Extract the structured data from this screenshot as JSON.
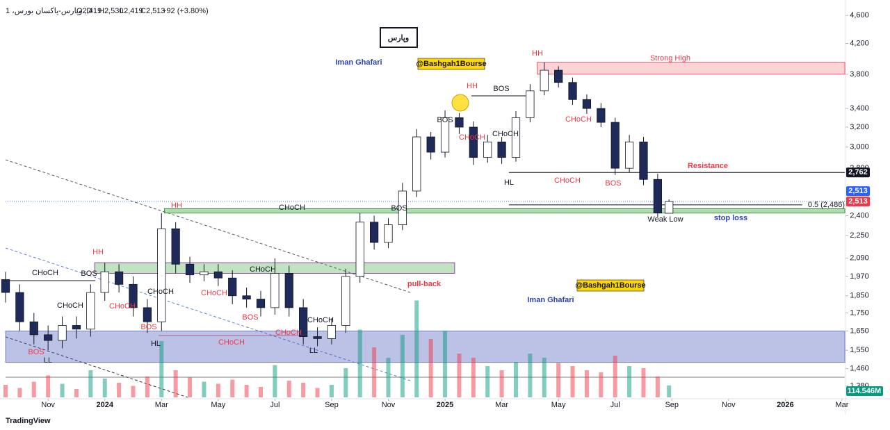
{
  "chart_data": {
    "type": "candlestick",
    "title": "1 ،وپارس-پاکسان بورس ,D",
    "ohlc": [
      "O2,419",
      "H2,530",
      "L2,419",
      "C2,513",
      "+92 (+3.80%)"
    ],
    "title_box": "وپارس",
    "watermarks": [
      "@Bashgah1Bourse",
      "@Bashgah1Bourse"
    ],
    "footer": "TradingView",
    "log_scale": true,
    "ylim": [
      1330,
      4750
    ],
    "yticks": [
      {
        "value": 4600,
        "label": "4,600"
      },
      {
        "value": 4200,
        "label": "4,200"
      },
      {
        "value": 3800,
        "label": "3,800"
      },
      {
        "value": 3400,
        "label": "3,400"
      },
      {
        "value": 3200,
        "label": "3,200"
      },
      {
        "value": 3000,
        "label": "3,000"
      },
      {
        "value": 2800,
        "label": "2,800"
      },
      {
        "value": 2400,
        "label": "2,400"
      },
      {
        "value": 2250,
        "label": "2,250"
      },
      {
        "value": 2090,
        "label": "2,090"
      },
      {
        "value": 1970,
        "label": "1,970"
      },
      {
        "value": 1850,
        "label": "1,850"
      },
      {
        "value": 1750,
        "label": "1,750"
      },
      {
        "value": 1650,
        "label": "1,650"
      },
      {
        "value": 1550,
        "label": "1,550"
      },
      {
        "value": 1460,
        "label": "1,460"
      },
      {
        "value": 1380,
        "label": "1,380"
      }
    ],
    "xlim": [
      -1.5,
      28.1
    ],
    "xticks": [
      {
        "value": 0,
        "label": "Nov"
      },
      {
        "value": 2,
        "label": "2024"
      },
      {
        "value": 4,
        "label": "Mar"
      },
      {
        "value": 6,
        "label": "May"
      },
      {
        "value": 8,
        "label": "Jul"
      },
      {
        "value": 10,
        "label": "Sep"
      },
      {
        "value": 12,
        "label": "Nov"
      },
      {
        "value": 14,
        "label": "2025"
      },
      {
        "value": 16,
        "label": "Mar"
      },
      {
        "value": 18,
        "label": "May"
      },
      {
        "value": 20,
        "label": "Jul"
      },
      {
        "value": 22,
        "label": "Sep"
      },
      {
        "value": 24,
        "label": "Nov"
      },
      {
        "value": 26,
        "label": "2026"
      },
      {
        "value": 28,
        "label": "Mar"
      }
    ],
    "up_color": "#ffffff",
    "down_color": "#1e2a5a",
    "x": [
      -1.5,
      -1,
      -0.5,
      0,
      0.5,
      1,
      1.5,
      2,
      2.5,
      3,
      3.5,
      4,
      4.5,
      5,
      5.5,
      6,
      6.5,
      7,
      7.5,
      8,
      8.5,
      9,
      9.5,
      10,
      10.5,
      11,
      11.5,
      12,
      12.5,
      13,
      13.5,
      14,
      14.5,
      15,
      15.5,
      16,
      16.5,
      17,
      17.5,
      18,
      18.5,
      19,
      19.5,
      20,
      20.5,
      21,
      21.5,
      21.9
    ],
    "open": [
      1950,
      1870,
      1700,
      1630,
      1600,
      1680,
      1660,
      1870,
      2000,
      1920,
      1780,
      1700,
      2300,
      2050,
      1980,
      2000,
      1960,
      1850,
      1830,
      1780,
      1990,
      1780,
      1620,
      1610,
      1680,
      1970,
      2350,
      2200,
      2330,
      2600,
      3100,
      2950,
      3300,
      3200,
      2900,
      3050,
      2900,
      3300,
      3600,
      3850,
      3700,
      3500,
      3400,
      3250,
      2800,
      3050,
      2700,
      2419
    ],
    "high": [
      2000,
      1920,
      1750,
      1680,
      1730,
      1730,
      1920,
      2060,
      2050,
      1970,
      1830,
      2420,
      2350,
      2100,
      2050,
      2050,
      2010,
      1900,
      1880,
      2090,
      2040,
      1830,
      1670,
      1720,
      2020,
      2420,
      2400,
      2380,
      2670,
      3180,
      3150,
      3380,
      3350,
      3260,
      3120,
      3100,
      3370,
      3680,
      3950,
      3900,
      3760,
      3560,
      3460,
      3300,
      3120,
      3100,
      2750,
      2530
    ],
    "low": [
      1810,
      1650,
      1580,
      1550,
      1560,
      1610,
      1620,
      1820,
      1870,
      1730,
      1640,
      1650,
      1990,
      1930,
      1940,
      1910,
      1800,
      1780,
      1730,
      1740,
      1730,
      1580,
      1570,
      1580,
      1640,
      1930,
      2150,
      2160,
      2290,
      2550,
      2880,
      2900,
      3130,
      2830,
      2850,
      2840,
      2860,
      3250,
      3550,
      3640,
      3440,
      3340,
      3200,
      2740,
      2760,
      2650,
      2390,
      2419
    ],
    "close": [
      1870,
      1700,
      1630,
      1600,
      1680,
      1660,
      1870,
      2000,
      1920,
      1780,
      1700,
      2300,
      2050,
      1980,
      2000,
      1960,
      1850,
      1830,
      1780,
      1990,
      1780,
      1620,
      1610,
      1680,
      1970,
      2350,
      2200,
      2330,
      2600,
      3100,
      2950,
      3300,
      3200,
      2900,
      3050,
      2900,
      3300,
      3600,
      3850,
      3700,
      3500,
      3400,
      3250,
      2800,
      3050,
      2700,
      2421,
      2513
    ],
    "volume": [
      120,
      90,
      150,
      210,
      130,
      80,
      260,
      180,
      140,
      110,
      200,
      540,
      260,
      190,
      150,
      130,
      170,
      120,
      100,
      310,
      160,
      140,
      90,
      120,
      280,
      650,
      480,
      380,
      600,
      930,
      560,
      640,
      420,
      380,
      300,
      260,
      340,
      420,
      380,
      330,
      300,
      260,
      240,
      400,
      300,
      280,
      200,
      114.546
    ],
    "volume_value_label": "114.546M",
    "zones": [
      {
        "x": [
          17.25,
          28.1
        ],
        "y": [
          3800,
          3950
        ],
        "color": "rgba(242,54,69,0.22)",
        "stroke": "#f23645"
      },
      {
        "x": [
          4.1,
          28.1
        ],
        "y": [
          2420,
          2455
        ],
        "color": "rgba(76,175,80,0.45)",
        "stroke": "#2e7d32"
      },
      {
        "x": [
          1.64,
          14.34
        ],
        "y": [
          1990,
          2060
        ],
        "color": "rgba(76,175,80,0.35)",
        "stroke": "#7b1fa2"
      },
      {
        "x": [
          -1.5,
          28.1
        ],
        "y": [
          1490,
          1650
        ],
        "color": "rgba(63,81,181,0.35)",
        "stroke": "#5c6bc0"
      }
    ],
    "levels": [
      {
        "value": 2762,
        "x": [
          16.25,
          28.1
        ],
        "color": "#131722"
      },
      {
        "value": 2486,
        "x": [
          16.25,
          26.6
        ],
        "color": "#131722",
        "label": "0.5 (2,486)"
      }
    ],
    "price_labels": [
      {
        "value": 2762,
        "label": "2,762",
        "color": "#131722"
      },
      {
        "value": 2513,
        "label": "2,513",
        "color": "#2962ff"
      },
      {
        "value": 2513,
        "label": "2,513",
        "color": "#f23645"
      }
    ],
    "annotations": [
      "HH",
      "HH",
      "HH",
      "HH",
      "BOS",
      "BOS",
      "BOS",
      "BOS",
      "BOS",
      "BOS",
      "BOS",
      "BOS",
      "CHoCH",
      "CHoCH",
      "CHoCH",
      "CHoCH",
      "CHoCH",
      "CHoCH",
      "CHoCH",
      "CHoCH",
      "CHoCH",
      "CHoCH",
      "CHoCH",
      "CHoCH",
      "CHoCH",
      "CHoCH",
      "HL",
      "HL",
      "LL",
      "LL",
      "Resistance",
      "stop loss",
      "pull-back",
      "Iman Ghafari",
      "Iman Ghafari",
      "Strong High",
      "Weak Low"
    ]
  }
}
